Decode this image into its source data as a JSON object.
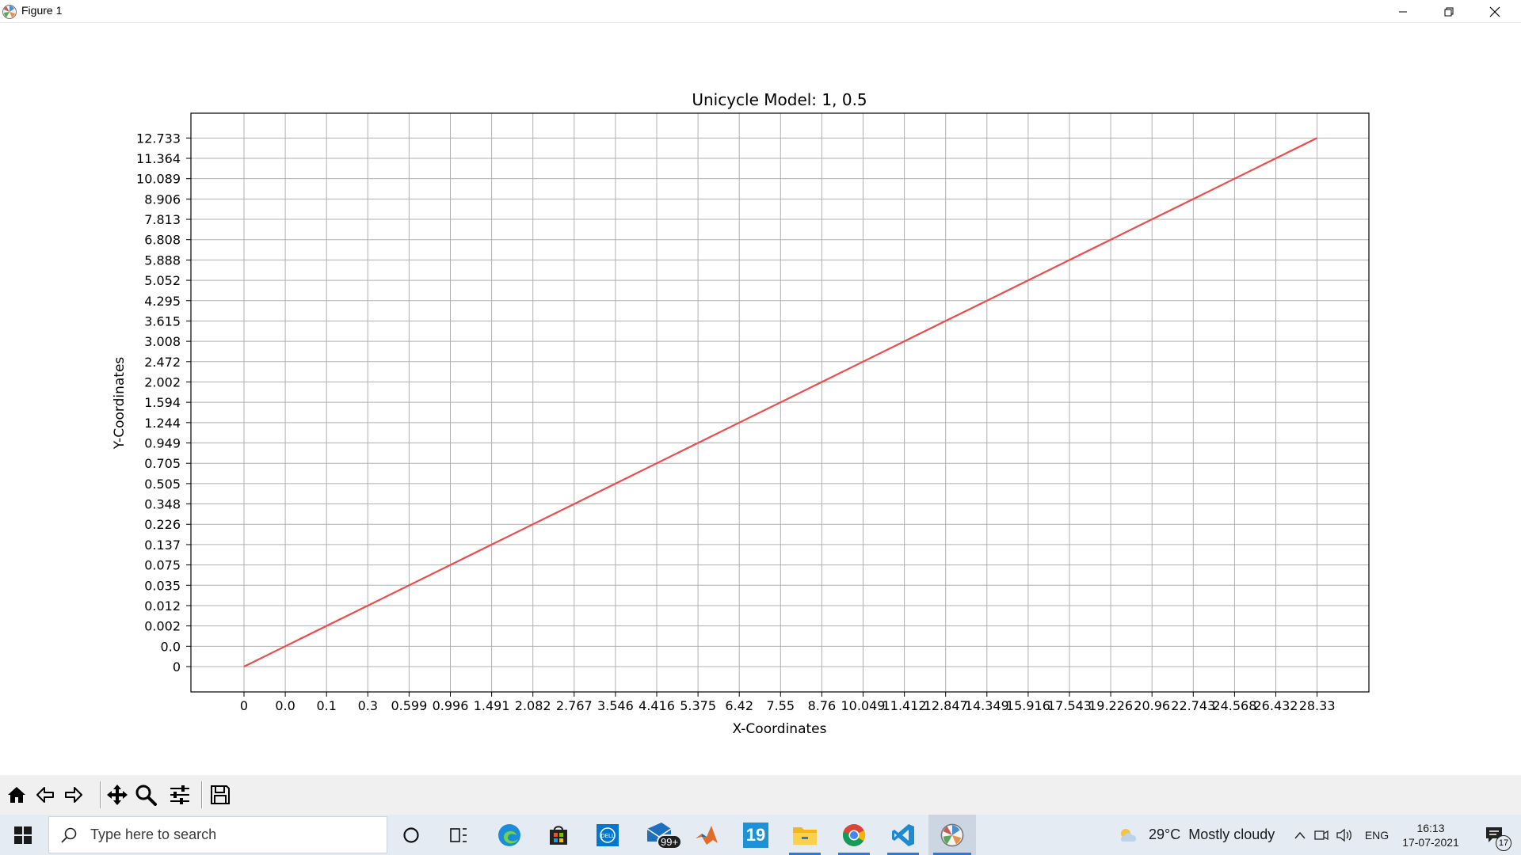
{
  "window": {
    "title": "Figure 1"
  },
  "chart_data": {
    "type": "line",
    "title": "Unicycle Model: 1, 0.5",
    "xlabel": "X-Coordinates",
    "ylabel": "Y-Coordinates",
    "grid": true,
    "line_color": "#ef4b4b",
    "x_tick_labels": [
      "0",
      "0.0",
      "0.1",
      "0.3",
      "0.599",
      "0.996",
      "1.491",
      "2.082",
      "2.767",
      "3.546",
      "4.416",
      "5.375",
      "6.42",
      "7.55",
      "8.76",
      "10.049",
      "11.412",
      "12.847",
      "14.349",
      "15.916",
      "17.543",
      "19.226",
      "20.96",
      "22.743",
      "24.568",
      "26.432",
      "28.33"
    ],
    "y_tick_labels": [
      "0",
      "0.0",
      "0.002",
      "0.012",
      "0.035",
      "0.075",
      "0.137",
      "0.226",
      "0.348",
      "0.505",
      "0.705",
      "0.949",
      "1.244",
      "1.594",
      "2.002",
      "2.472",
      "3.008",
      "3.615",
      "4.295",
      "5.052",
      "5.888",
      "6.808",
      "7.813",
      "8.906",
      "10.089",
      "11.364",
      "12.733"
    ],
    "series": [
      {
        "x": [
          "0",
          "0.0",
          "0.1",
          "0.3",
          "0.599",
          "0.996",
          "1.491",
          "2.082",
          "2.767",
          "3.546",
          "4.416",
          "5.375",
          "6.42",
          "7.55",
          "8.76",
          "10.049",
          "11.412",
          "12.847",
          "14.349",
          "15.916",
          "17.543",
          "19.226",
          "20.96",
          "22.743",
          "24.568",
          "26.432",
          "28.33"
        ],
        "y": [
          "0",
          "0.0",
          "0.002",
          "0.012",
          "0.035",
          "0.075",
          "0.137",
          "0.226",
          "0.348",
          "0.505",
          "0.705",
          "0.949",
          "1.244",
          "1.594",
          "2.002",
          "2.472",
          "3.008",
          "3.615",
          "4.295",
          "5.052",
          "5.888",
          "6.808",
          "7.813",
          "8.906",
          "10.089",
          "11.364",
          "12.733"
        ]
      }
    ]
  },
  "toolbar": {
    "buttons": [
      "home-icon",
      "back-arrow-icon",
      "forward-arrow-icon",
      "pan-icon",
      "zoom-icon",
      "configure-subplots-icon",
      "save-icon"
    ]
  },
  "taskbar": {
    "search_placeholder": "Type here to search",
    "mail_badge": "99+",
    "calendar_day": "19",
    "weather": "29°C  Mostly cloudy",
    "language": "ENG",
    "time": "16:13",
    "date": "17-07-2021",
    "notification_count": "17"
  }
}
